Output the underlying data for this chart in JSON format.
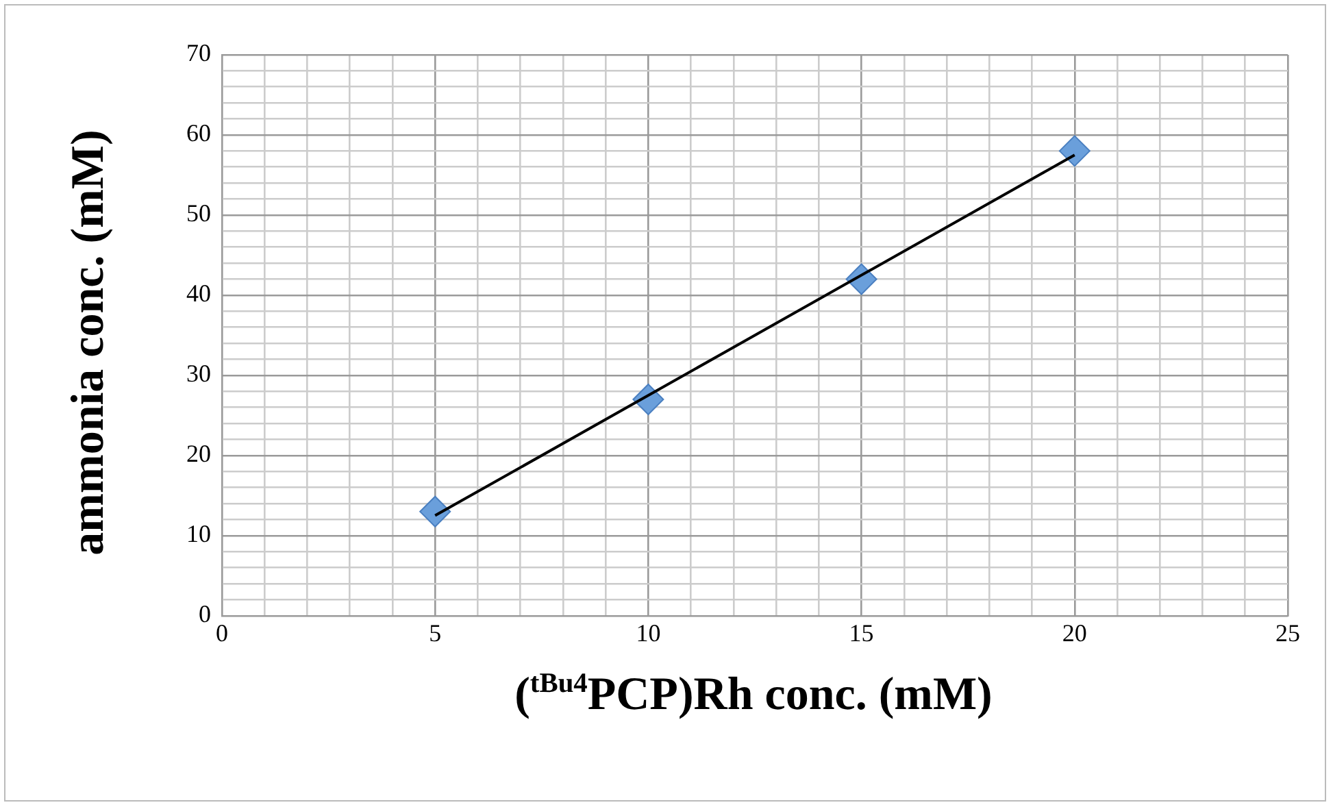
{
  "chart_data": {
    "type": "scatter",
    "xlabel": "($^{tBu4}$PCP)Rh conc. (mM)",
    "ylabel": "ammonia conc. (mM)",
    "xlim": [
      0,
      25
    ],
    "ylim": [
      0,
      70
    ],
    "grid": true,
    "xticks": [
      0,
      {
        "value": 1,
        "label": null
      },
      {
        "value": 2,
        "label": null
      },
      {
        "value": 3,
        "label": null
      },
      {
        "value": 4,
        "label": null
      },
      5,
      {
        "value": 6,
        "label": null
      },
      {
        "value": 7,
        "label": null
      },
      {
        "value": 8,
        "label": null
      },
      {
        "value": 9,
        "label": null
      },
      10,
      {
        "value": 11,
        "label": null
      },
      {
        "value": 12,
        "label": null
      },
      {
        "value": 13,
        "label": null
      },
      {
        "value": 14,
        "label": null
      },
      15,
      {
        "value": 16,
        "label": null
      },
      {
        "value": 17,
        "label": null
      },
      {
        "value": 18,
        "label": null
      },
      {
        "value": 19,
        "label": null
      },
      20,
      {
        "value": 21,
        "label": null
      },
      {
        "value": 22,
        "label": null
      },
      {
        "value": 23,
        "label": null
      },
      {
        "value": 24,
        "label": null
      },
      25
    ],
    "yticks": [
      0,
      {
        "value": 2,
        "label": null
      },
      {
        "value": 4,
        "label": null
      },
      {
        "value": 6,
        "label": null
      },
      {
        "value": 8,
        "label": null
      },
      10,
      {
        "value": 12,
        "label": null
      },
      {
        "value": 14,
        "label": null
      },
      {
        "value": 16,
        "label": null
      },
      {
        "value": 18,
        "label": null
      },
      20,
      {
        "value": 22,
        "label": null
      },
      {
        "value": 24,
        "label": null
      },
      {
        "value": 26,
        "label": null
      },
      {
        "value": 28,
        "label": null
      },
      30,
      {
        "value": 32,
        "label": null
      },
      {
        "value": 34,
        "label": null
      },
      {
        "value": 36,
        "label": null
      },
      {
        "value": 38,
        "label": null
      },
      40,
      {
        "value": 42,
        "label": null
      },
      {
        "value": 44,
        "label": null
      },
      {
        "value": 46,
        "label": null
      },
      {
        "value": 48,
        "label": null
      },
      50,
      {
        "value": 52,
        "label": null
      },
      {
        "value": 54,
        "label": null
      },
      {
        "value": 56,
        "label": null
      },
      {
        "value": 58,
        "label": null
      },
      60,
      {
        "value": 62,
        "label": null
      },
      {
        "value": 64,
        "label": null
      },
      {
        "value": 66,
        "label": null
      },
      {
        "value": 68,
        "label": null
      },
      70
    ],
    "series": [
      {
        "color": "#6a9fdb",
        "marker": "diamond",
        "x": [
          5,
          10,
          15,
          20
        ],
        "values": [
          13,
          27,
          42,
          58
        ]
      },
      {
        "type": "line",
        "color": "#000000",
        "marker": "none",
        "line_style": "solid",
        "x": [
          5,
          20
        ],
        "values": [
          12.5,
          57.5
        ]
      }
    ]
  }
}
